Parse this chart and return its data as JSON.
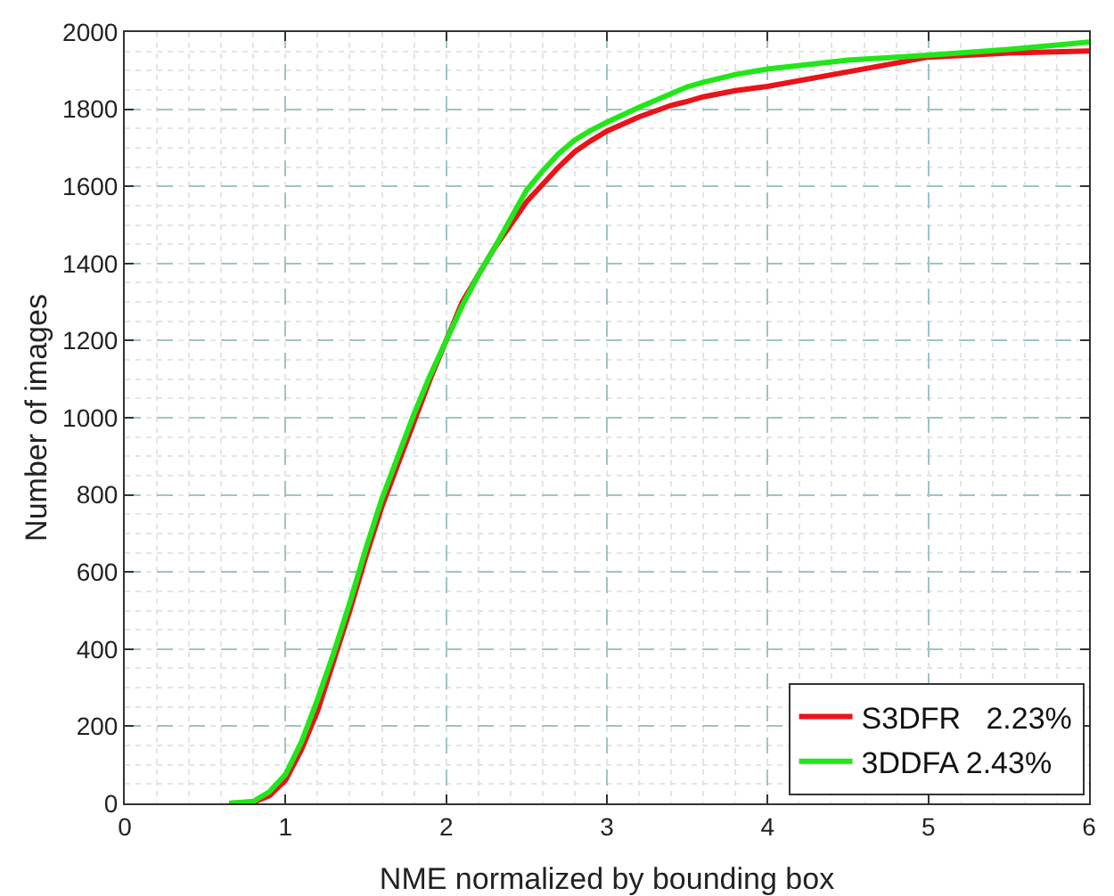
{
  "chart_data": {
    "type": "line",
    "xlabel": "NME normalized by bounding box",
    "ylabel": "Number of images",
    "xlim": [
      0,
      6
    ],
    "xticks": [
      0,
      1,
      2,
      3,
      4,
      5,
      6
    ],
    "ylim": [
      0,
      2000
    ],
    "yticks": [
      0,
      200,
      400,
      600,
      800,
      1000,
      1200,
      1400,
      1600,
      1800,
      2000
    ],
    "grid": true,
    "legend": "bottom right",
    "marker": "none",
    "line_style": "solid",
    "series": [
      {
        "name": "S3DFR   2.23%",
        "color": "#e8141a",
        "x": [
          0.65,
          0.8,
          0.9,
          1.0,
          1.1,
          1.2,
          1.3,
          1.4,
          1.5,
          1.6,
          1.7,
          1.8,
          1.9,
          2.0,
          2.1,
          2.2,
          2.3,
          2.4,
          2.5,
          2.6,
          2.7,
          2.8,
          2.9,
          3.0,
          3.2,
          3.4,
          3.5,
          3.6,
          3.8,
          4.0,
          4.5,
          5.0,
          5.5,
          6.0
        ],
        "values": [
          0,
          3,
          20,
          60,
          140,
          240,
          370,
          500,
          640,
          770,
          880,
          990,
          1100,
          1200,
          1300,
          1370,
          1440,
          1500,
          1560,
          1605,
          1650,
          1690,
          1718,
          1743,
          1780,
          1810,
          1820,
          1832,
          1848,
          1859,
          1897,
          1935,
          1946,
          1951
        ]
      },
      {
        "name": "3DDFA 2.43%",
        "color": "#22e61a",
        "x": [
          0.65,
          0.8,
          0.9,
          1.0,
          1.1,
          1.2,
          1.3,
          1.4,
          1.5,
          1.6,
          1.7,
          1.8,
          1.9,
          2.0,
          2.1,
          2.2,
          2.3,
          2.4,
          2.5,
          2.6,
          2.7,
          2.8,
          2.9,
          3.0,
          3.2,
          3.4,
          3.5,
          3.6,
          3.8,
          4.0,
          4.5,
          5.0,
          5.5,
          6.0
        ],
        "values": [
          0,
          5,
          30,
          75,
          160,
          270,
          390,
          520,
          660,
          790,
          900,
          1010,
          1110,
          1200,
          1290,
          1370,
          1440,
          1515,
          1590,
          1640,
          1685,
          1720,
          1745,
          1766,
          1805,
          1840,
          1858,
          1870,
          1890,
          1904,
          1927,
          1940,
          1955,
          1974
        ]
      }
    ]
  }
}
